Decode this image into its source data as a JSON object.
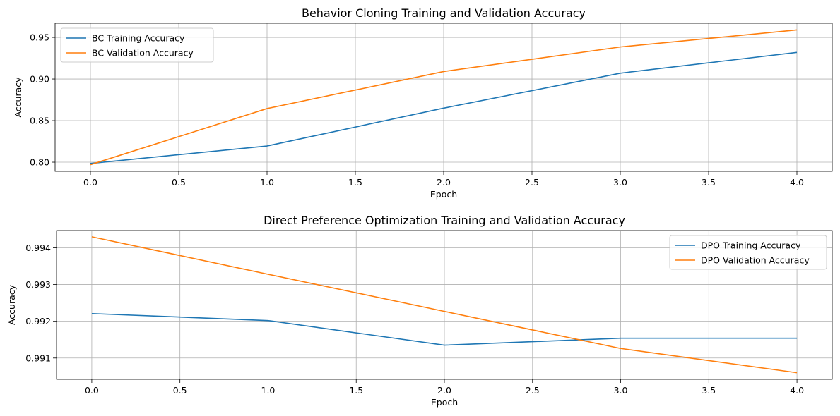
{
  "chart_data": [
    {
      "type": "line",
      "title": "Behavior Cloning Training and Validation Accuracy",
      "xlabel": "Epoch",
      "ylabel": "Accuracy",
      "xlim": [
        -0.2,
        4.2
      ],
      "ylim": [
        0.789,
        0.967
      ],
      "x": [
        0,
        1,
        2,
        3,
        4
      ],
      "xticks": [
        0.0,
        0.5,
        1.0,
        1.5,
        2.0,
        2.5,
        3.0,
        3.5,
        4.0
      ],
      "xtick_labels": [
        "0.0",
        "0.5",
        "1.0",
        "1.5",
        "2.0",
        "2.5",
        "3.0",
        "3.5",
        "4.0"
      ],
      "yticks": [
        0.8,
        0.85,
        0.9,
        0.95
      ],
      "ytick_labels": [
        "0.80",
        "0.85",
        "0.90",
        "0.95"
      ],
      "grid": true,
      "legend_position": "upper left",
      "series": [
        {
          "name": "BC Training Accuracy",
          "color": "#1f77b4",
          "values": [
            0.7985,
            0.8195,
            0.865,
            0.907,
            0.932
          ]
        },
        {
          "name": "BC Validation Accuracy",
          "color": "#ff7f0e",
          "values": [
            0.797,
            0.8645,
            0.909,
            0.9385,
            0.959
          ]
        }
      ]
    },
    {
      "type": "line",
      "title": "Direct Preference Optimization Training and Validation Accuracy",
      "xlabel": "Epoch",
      "ylabel": "Accuracy",
      "xlim": [
        -0.2,
        4.2
      ],
      "ylim": [
        0.99042,
        0.99447
      ],
      "x": [
        0,
        1,
        2,
        3,
        4
      ],
      "xticks": [
        0.0,
        0.5,
        1.0,
        1.5,
        2.0,
        2.5,
        3.0,
        3.5,
        4.0
      ],
      "xtick_labels": [
        "0.0",
        "0.5",
        "1.0",
        "1.5",
        "2.0",
        "2.5",
        "3.0",
        "3.5",
        "4.0"
      ],
      "yticks": [
        0.991,
        0.992,
        0.993,
        0.994
      ],
      "ytick_labels": [
        "0.991",
        "0.992",
        "0.993",
        "0.994"
      ],
      "grid": true,
      "legend_position": "upper right",
      "series": [
        {
          "name": "DPO Training Accuracy",
          "color": "#1f77b4",
          "values": [
            0.99221,
            0.99202,
            0.99135,
            0.99154,
            0.99154
          ]
        },
        {
          "name": "DPO Validation Accuracy",
          "color": "#ff7f0e",
          "values": [
            0.9943,
            0.99328,
            0.99227,
            0.99126,
            0.9906
          ]
        }
      ]
    }
  ]
}
